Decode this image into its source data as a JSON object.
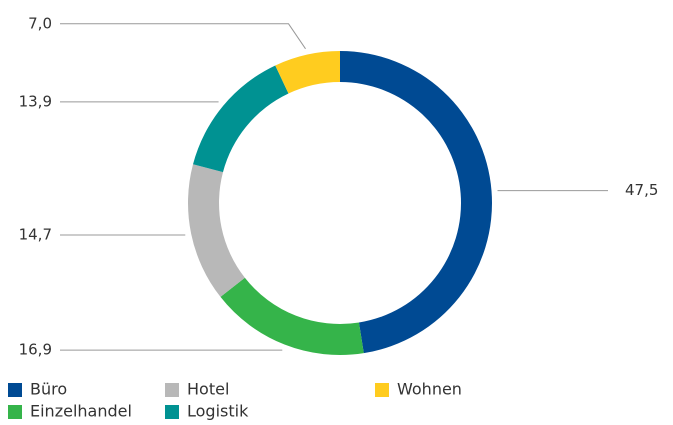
{
  "chart_data": {
    "type": "pie",
    "categories": [
      "Büro",
      "Einzelhandel",
      "Hotel",
      "Logistik",
      "Wohnen"
    ],
    "values": [
      47.5,
      16.9,
      14.7,
      13.9,
      7.0
    ],
    "value_labels": [
      "47,5",
      "16,9",
      "14,7",
      "13,9",
      "7,0"
    ],
    "colors": [
      "#004a93",
      "#35b44a",
      "#b8b8b8",
      "#009292",
      "#ffcc1f"
    ],
    "donut": true,
    "legend": "bottom-left"
  }
}
